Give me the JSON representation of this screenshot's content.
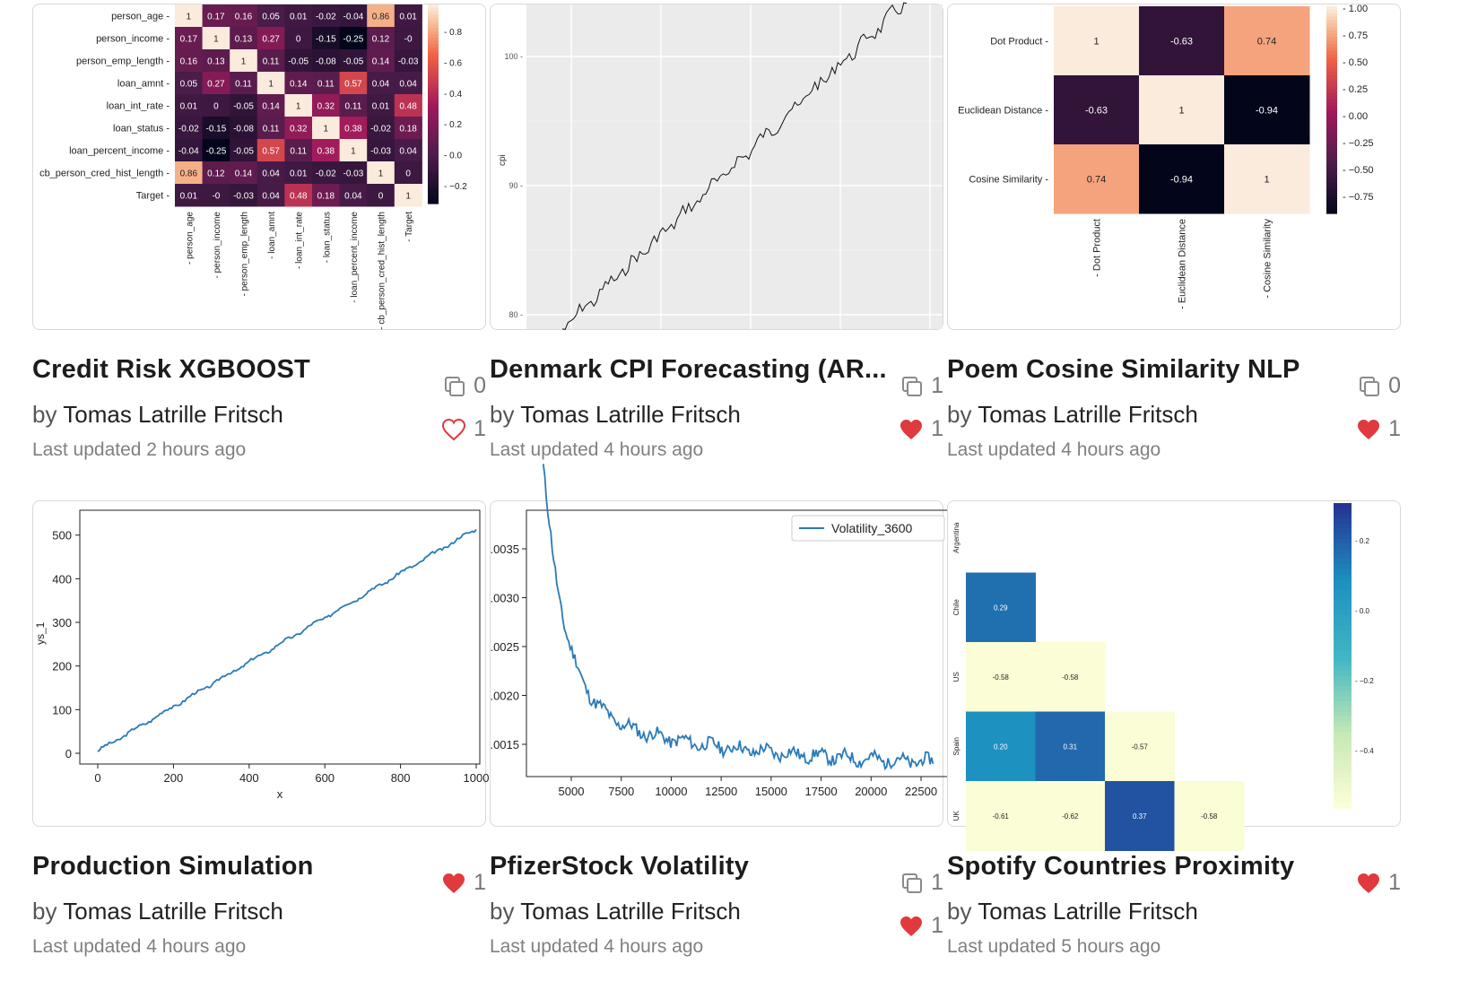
{
  "cards": [
    {
      "title": "Credit Risk XGBOOST",
      "by": "by",
      "author": "Tomas Latrille Fritsch",
      "updated": "Last updated 2 hours ago",
      "copies": "0",
      "likes": "1",
      "liked": false,
      "thumb": {
        "rows": [
          "person_age",
          "person_income",
          "person_emp_length",
          "loan_amnt",
          "loan_int_rate",
          "loan_status",
          "loan_percent_income",
          "cb_person_cred_hist_length",
          "Target"
        ],
        "cols": [
          "person_age",
          "person_income",
          "person_emp_length",
          "loan_amnt",
          "loan_int_rate",
          "loan_status",
          "loan_percent_income",
          "cb_person_cred_hist_length",
          "Target"
        ],
        "cells": [
          [
            "1",
            "0.17",
            "0.16",
            "0.05",
            "0.01",
            "-0.02",
            "-0.04",
            "0.86",
            "0.01"
          ],
          [
            "0.17",
            "1",
            "0.13",
            "0.27",
            "0",
            "-0.15",
            "-0.25",
            "0.12",
            "-0"
          ],
          [
            "0.16",
            "0.13",
            "1",
            "0.11",
            "-0.05",
            "-0.08",
            "-0.05",
            "0.14",
            "-0.03"
          ],
          [
            "0.05",
            "0.27",
            "0.11",
            "1",
            "0.14",
            "0.11",
            "0.57",
            "0.04",
            "0.04"
          ],
          [
            "0.01",
            "0",
            "-0.05",
            "0.14",
            "1",
            "0.32",
            "0.11",
            "0.01",
            "0.48"
          ],
          [
            "-0.02",
            "-0.15",
            "-0.08",
            "0.11",
            "0.32",
            "1",
            "0.38",
            "-0.02",
            "0.18"
          ],
          [
            "-0.04",
            "-0.25",
            "-0.05",
            "0.57",
            "0.11",
            "0.38",
            "1",
            "-0.03",
            "0.04"
          ],
          [
            "0.86",
            "0.12",
            "0.14",
            "0.04",
            "0.01",
            "-0.02",
            "-0.03",
            "1",
            "0"
          ],
          [
            "0.01",
            "-0",
            "-0.03",
            "0.04",
            "0.48",
            "0.18",
            "0.04",
            "0",
            "1"
          ]
        ],
        "colorbar_ticks": [
          "0.8",
          "0.6",
          "0.4",
          "0.2",
          "0.0",
          "−0.2"
        ]
      }
    },
    {
      "title": "Denmark CPI Forecasting (AR...",
      "by": "by",
      "author": "Tomas Latrille Fritsch",
      "updated": "Last updated 4 hours ago",
      "copies": "1",
      "likes": "1",
      "liked": true,
      "thumb": {
        "ylabel": "cpi",
        "y_ticks": [
          "100",
          "90",
          "80"
        ]
      }
    },
    {
      "title": "Poem Cosine Similarity NLP",
      "by": "by",
      "author": "Tomas Latrille Fritsch",
      "updated": "Last updated 4 hours ago",
      "copies": "0",
      "likes": "1",
      "liked": true,
      "thumb": {
        "labels": [
          "Dot Product",
          "Euclidean Distance",
          "Cosine Similarity"
        ],
        "cells": [
          [
            "1",
            "-0.63",
            "0.74"
          ],
          [
            "-0.63",
            "1",
            "-0.94"
          ],
          [
            "0.74",
            "-0.94",
            "1"
          ]
        ],
        "colorbar_ticks": [
          "1.00",
          "0.75",
          "0.50",
          "0.25",
          "0.00",
          "−0.25",
          "−0.50",
          "−0.75"
        ]
      }
    },
    {
      "title": "Production Simulation",
      "by": "by",
      "author": "Tomas Latrille Fritsch",
      "updated": "Last updated 4 hours ago",
      "likes": "1",
      "liked": true,
      "thumb": {
        "xlabel": "x",
        "ylabel": "ys_1",
        "x_ticks": [
          "0",
          "200",
          "400",
          "600",
          "800",
          "1000"
        ],
        "y_ticks": [
          "500",
          "400",
          "300",
          "200",
          "100",
          "0"
        ]
      }
    },
    {
      "title": "PfizerStock Volatility",
      "by": "by",
      "author": "Tomas Latrille Fritsch",
      "updated": "Last updated 4 hours ago",
      "copies": "1",
      "likes": "1",
      "liked": true,
      "thumb": {
        "legend": "Volatility_3600",
        "x_ticks": [
          "5000",
          "7500",
          "10000",
          "12500",
          "15000",
          "17500",
          "20000",
          "22500"
        ],
        "y_ticks": [
          ".0035",
          ".0030",
          ".0025",
          ".0020",
          ".0015"
        ]
      }
    },
    {
      "title": "Spotify Countries Proximity",
      "by": "by",
      "author": "Tomas Latrille Fritsch",
      "updated": "Last updated 5 hours ago",
      "likes": "1",
      "liked": true,
      "thumb": {
        "rows": [
          "Argentina",
          "Chile",
          "US",
          "Spain",
          "UK"
        ],
        "cells": [
          [],
          [
            "0.29"
          ],
          [
            "-0.58",
            "-0.58"
          ],
          [
            "0.20",
            "0.31",
            "-0.57"
          ],
          [
            "-0.61",
            "-0.62",
            "0.37",
            "-0.58"
          ]
        ],
        "colorbar_ticks": [
          "0.2",
          "0.0",
          "−0.2",
          "−0.4"
        ]
      }
    }
  ],
  "colors": {
    "like_red": "#e0393e",
    "icon_grey": "#8a8a8a",
    "line_blue": "#2a7ab8"
  }
}
